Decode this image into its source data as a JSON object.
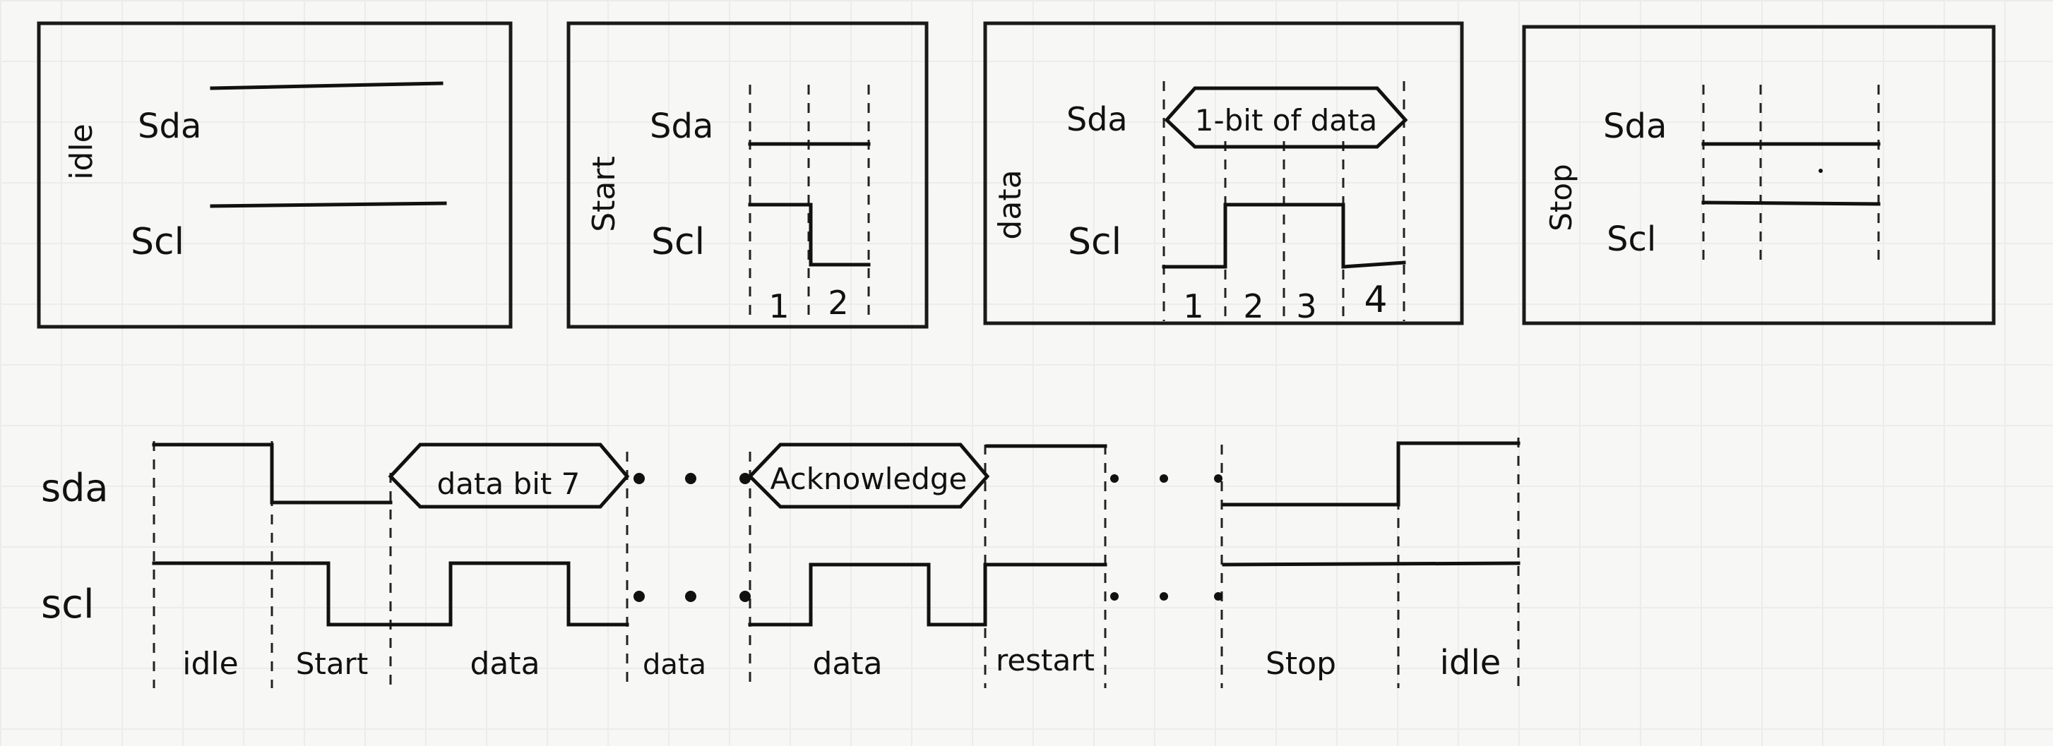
{
  "panels": {
    "idle": {
      "title": "idle",
      "sda": "Sda",
      "scl": "Scl"
    },
    "start": {
      "title": "Start",
      "sda": "Sda",
      "scl": "Scl",
      "ticks": [
        "1",
        "2"
      ]
    },
    "data": {
      "title": "data",
      "sda": "Sda",
      "scl": "Scl",
      "bubble": "1-bit of data",
      "ticks": [
        "1",
        "2",
        "3",
        "4"
      ]
    },
    "stop": {
      "title": "Stop",
      "sda": "Sda",
      "scl": "Scl"
    }
  },
  "timeline": {
    "sda_label": "sda",
    "scl_label": "scl",
    "bubble_data": "data bit 7",
    "bubble_ack": "Acknowledge",
    "phases": [
      "idle",
      "Start",
      "data",
      "data",
      "data",
      "restart",
      "Stop",
      "idle"
    ]
  }
}
